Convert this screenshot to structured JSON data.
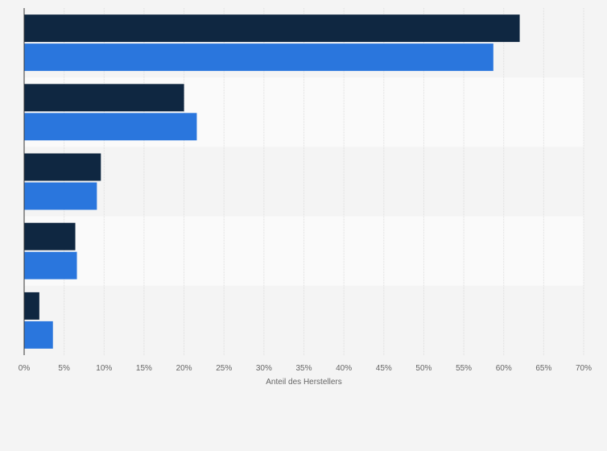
{
  "chart_data": {
    "type": "bar",
    "orientation": "horizontal",
    "categories": [
      "",
      "",
      "",
      "",
      ""
    ],
    "series": [
      {
        "color": "#0f2741",
        "values": [
          62,
          20,
          9.6,
          6.4,
          1.9
        ]
      },
      {
        "color": "#2a76dd",
        "values": [
          58.7,
          21.6,
          9.1,
          6.6,
          3.6
        ]
      }
    ],
    "xlabel": "Anteil des Herstellers",
    "xlim": [
      0,
      70
    ],
    "xticks": [
      0,
      5,
      10,
      15,
      20,
      25,
      30,
      35,
      40,
      45,
      50,
      55,
      60,
      65,
      70
    ],
    "xtick_labels": [
      "0%",
      "5%",
      "10%",
      "15%",
      "20%",
      "25%",
      "30%",
      "35%",
      "40%",
      "45%",
      "50%",
      "55%",
      "60%",
      "65%",
      "70%"
    ],
    "grid": true,
    "legend": "none"
  }
}
